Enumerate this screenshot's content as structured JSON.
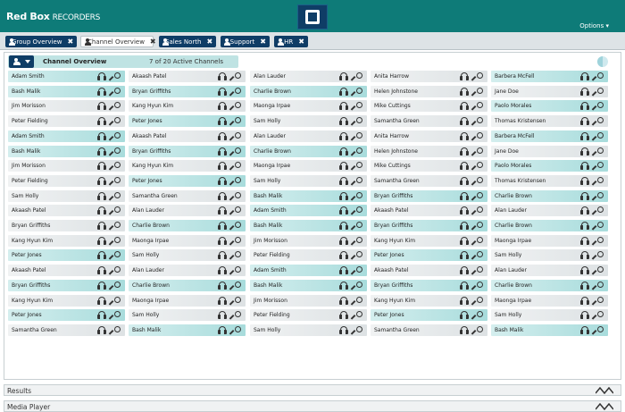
{
  "app": {
    "logo_brand": "Red Box",
    "logo_suffix": "RECORDERS",
    "options_label": "Options ▾"
  },
  "tabs": [
    {
      "label": "Group Overview",
      "style": "dark"
    },
    {
      "label": "Channel Overview",
      "style": "light"
    },
    {
      "label": "Sales North",
      "style": "dark"
    },
    {
      "label": "Support",
      "style": "dark"
    },
    {
      "label": "HR",
      "style": "dark"
    }
  ],
  "panel": {
    "title": "Channel Overview",
    "count": "7 of 20 Active Channels"
  },
  "grid": {
    "columns": [
      [
        "Adam Smith",
        "Bash Malik",
        "Jim Morisson",
        "Peter Fielding",
        "Adam Smith",
        "Bash Malik",
        "Jim Morisson",
        "Peter Fielding",
        "Sam Holly",
        "Akaash Patel",
        "Bryan Griffiths",
        "Kang Hyun Kim",
        "Peter Jones",
        "Akaash Patel",
        "Bryan Griffiths",
        "Kang Hyun Kim",
        "Peter Jones",
        "Samantha Green"
      ],
      [
        "Akaash Patel",
        "Bryan Griffiths",
        "Kang Hyun Kim",
        "Peter Jones",
        "Akaash Patel",
        "Bryan Griffiths",
        "Kang Hyun Kim",
        "Peter Jones",
        "Samantha Green",
        "Alan Lauder",
        "Charlie Brown",
        "Maonga Irpae",
        "Sam Holly",
        "Alan Lauder",
        "Charlie Brown",
        "Maonga Irpae",
        "Sam Holly",
        "Bash Malik"
      ],
      [
        "Alan Lauder",
        "Charlie Brown",
        "Maonga Irpae",
        "Sam Holly",
        "Alan Lauder",
        "Charlie Brown",
        "Maonga Irpae",
        "Sam Holly",
        "Bash Malik",
        "Adam Smith",
        "Bash Malik",
        "Jim Morisson",
        "Peter Fielding",
        "Adam Smith",
        "Bash Malik",
        "Jim Morisson",
        "Peter Fielding",
        "Sam Holly"
      ],
      [
        "Anita Harrow",
        "Helen Johnstone",
        "Mike Cuttings",
        "Samantha Green",
        "Anita Harrow",
        "Helen Johnstone",
        "Mike Cuttings",
        "Samantha Green",
        "Bryan Griffiths",
        "Akaash Patel",
        "Bryan Griffiths",
        "Kang Hyun Kim",
        "Peter Jones",
        "Akaash Patel",
        "Bryan Griffiths",
        "Kang Hyun Kim",
        "Peter Jones",
        "Samantha Green"
      ],
      [
        "Barbera McFell",
        "Jane Doe",
        "Paolo Morales",
        "Thomas Kristensen",
        "Barbera McFell",
        "Jane Doe",
        "Paolo Morales",
        "Thomas Kristensen",
        "Charlie Brown",
        "Alan Lauder",
        "Charlie Brown",
        "Maonga Irpae",
        "Sam Holly",
        "Alan Lauder",
        "Charlie Brown",
        "Maonga Irpae",
        "Sam Holly",
        "Bash Malik"
      ]
    ],
    "teal_mask": [
      [
        1,
        1,
        0,
        0,
        1,
        1,
        0,
        0,
        0,
        0,
        0,
        0,
        1,
        0,
        1,
        0,
        1,
        0
      ],
      [
        0,
        1,
        0,
        1,
        0,
        1,
        0,
        1,
        0,
        0,
        1,
        0,
        0,
        0,
        1,
        0,
        0,
        1
      ],
      [
        0,
        1,
        0,
        0,
        0,
        1,
        0,
        0,
        1,
        1,
        1,
        0,
        0,
        1,
        1,
        0,
        0,
        0
      ],
      [
        0,
        0,
        0,
        0,
        0,
        0,
        0,
        0,
        1,
        0,
        1,
        0,
        1,
        0,
        1,
        0,
        1,
        0
      ],
      [
        1,
        0,
        1,
        0,
        1,
        0,
        1,
        0,
        1,
        0,
        1,
        0,
        0,
        0,
        1,
        0,
        0,
        1
      ]
    ]
  },
  "bottom": {
    "results_label": "Results",
    "media_label": "Media Player"
  }
}
